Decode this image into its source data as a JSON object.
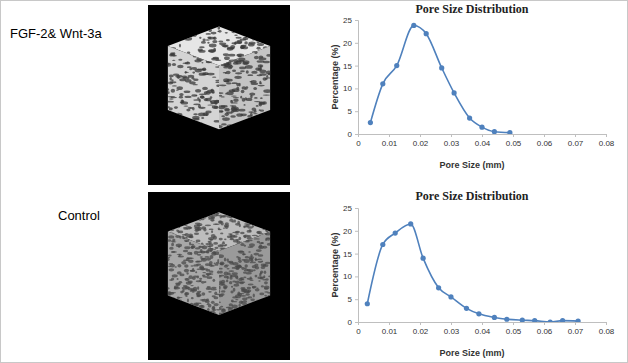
{
  "chart_data": [
    {
      "type": "line",
      "title": "Pore Size Distribution",
      "x_label": "Pore Size (mm)",
      "y_label": "Percentage (%)",
      "x": [
        0.004,
        0.008,
        0.0125,
        0.018,
        0.022,
        0.027,
        0.031,
        0.036,
        0.04,
        0.044,
        0.049
      ],
      "series": [
        {
          "name": "FGF-2& Wnt-3a",
          "color": "#4f81bd",
          "marker": "circle",
          "values": [
            2.5,
            11,
            15,
            23.8,
            22,
            14.5,
            9,
            3.5,
            1.5,
            0.5,
            0.3
          ]
        }
      ],
      "xlim": [
        0,
        0.08
      ],
      "xticks": [
        0,
        0.01,
        0.02,
        0.03,
        0.04,
        0.05,
        0.06,
        0.07,
        0.08
      ],
      "ylim": [
        0,
        25
      ],
      "yticks": [
        0,
        5,
        10,
        15,
        20,
        25
      ],
      "grid": false
    },
    {
      "type": "line",
      "title": "Pore Size Distribution",
      "x_label": "Pore Size (mm)",
      "y_label": "Percentage (%)",
      "x": [
        0.003,
        0.008,
        0.012,
        0.017,
        0.021,
        0.026,
        0.03,
        0.035,
        0.039,
        0.044,
        0.048,
        0.053,
        0.057,
        0.062,
        0.066,
        0.071
      ],
      "series": [
        {
          "name": "Control",
          "color": "#4f81bd",
          "marker": "circle",
          "values": [
            4,
            17,
            19.5,
            21.5,
            14,
            7.5,
            5.5,
            3,
            1.8,
            1,
            0.6,
            0.4,
            0.3,
            0,
            0.3,
            0.2
          ]
        }
      ],
      "xlim": [
        0,
        0.08
      ],
      "xticks": [
        0,
        0.01,
        0.02,
        0.03,
        0.04,
        0.05,
        0.06,
        0.07,
        0.08
      ],
      "ylim": [
        0,
        25
      ],
      "yticks": [
        0,
        5,
        10,
        15,
        20,
        25
      ],
      "grid": false
    }
  ]
}
